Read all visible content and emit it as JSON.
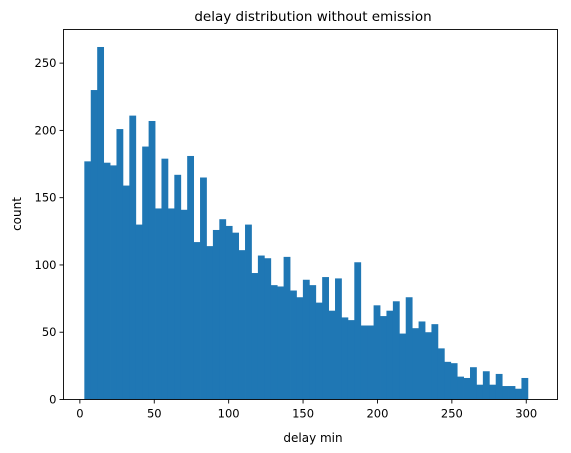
{
  "chart_data": {
    "type": "bar",
    "title": "delay distribution without emission",
    "xlabel": "delay min",
    "ylabel": "count",
    "xlim": [
      -11,
      321
    ],
    "ylim": [
      0,
      275
    ],
    "xticks": [
      0,
      50,
      100,
      150,
      200,
      250,
      300
    ],
    "yticks": [
      0,
      50,
      100,
      150,
      200,
      250
    ],
    "grid": false,
    "legend": "none",
    "bar_color": "#1f77b4",
    "bin_start": 3,
    "bin_width": 4.32,
    "counts": [
      177,
      230,
      262,
      176,
      174,
      201,
      159,
      211,
      130,
      188,
      207,
      142,
      179,
      142,
      167,
      141,
      181,
      117,
      165,
      114,
      126,
      134,
      129,
      124,
      111,
      130,
      94,
      107,
      105,
      85,
      84,
      106,
      81,
      76,
      89,
      85,
      72,
      91,
      66,
      90,
      61,
      59,
      102,
      55,
      55,
      70,
      62,
      66,
      73,
      49,
      76,
      53,
      58,
      50,
      56,
      38,
      28,
      27,
      17,
      16,
      24,
      11,
      21,
      11,
      19,
      10,
      10,
      8,
      16
    ]
  }
}
